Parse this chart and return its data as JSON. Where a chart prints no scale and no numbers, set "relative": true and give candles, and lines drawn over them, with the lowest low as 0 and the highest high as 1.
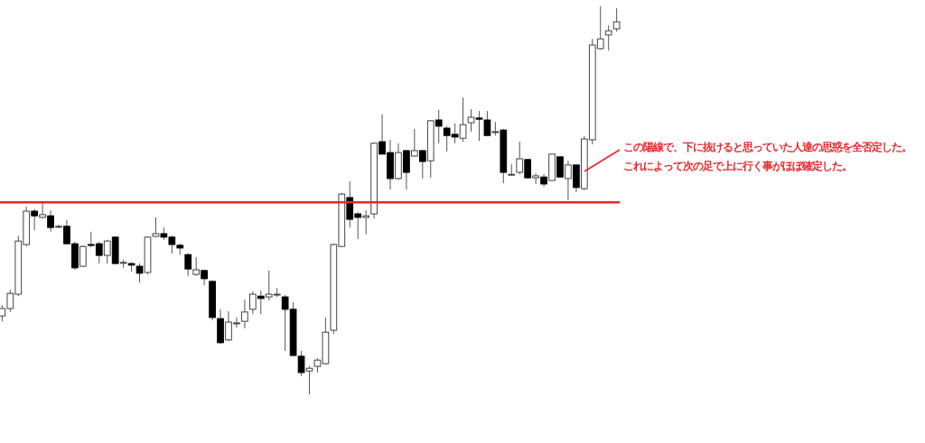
{
  "chart_data": {
    "type": "candlestick",
    "relative": true,
    "categories": [
      null,
      null,
      null,
      null,
      null,
      null,
      null,
      null,
      null,
      null,
      null,
      null,
      null,
      null,
      null,
      null,
      null,
      null,
      null,
      null,
      null,
      null,
      null,
      null,
      null,
      null,
      null,
      null,
      null,
      null,
      null,
      null,
      null,
      null,
      null,
      null,
      null,
      null,
      null,
      null,
      null,
      null,
      null,
      null,
      null,
      null,
      null,
      null,
      null,
      null,
      null,
      null,
      null,
      null,
      null,
      null,
      null,
      null,
      null,
      null,
      null,
      null,
      null,
      null,
      null,
      null,
      null,
      null,
      null,
      null,
      null,
      null,
      null,
      null,
      null,
      null,
      null
    ],
    "ohlc": [
      [
        0.202,
        0.23,
        0.188,
        0.221
      ],
      [
        0.221,
        0.27,
        0.212,
        0.26
      ],
      [
        0.258,
        0.409,
        0.253,
        0.395
      ],
      [
        0.386,
        0.484,
        0.381,
        0.472
      ],
      [
        0.472,
        0.477,
        0.423,
        0.46
      ],
      [
        0.456,
        0.493,
        0.453,
        0.463
      ],
      [
        0.46,
        0.474,
        0.419,
        0.43
      ],
      [
        0.433,
        0.437,
        0.428,
        0.433
      ],
      [
        0.433,
        0.449,
        0.388,
        0.388
      ],
      [
        0.388,
        0.393,
        0.321,
        0.326
      ],
      [
        0.33,
        0.384,
        0.328,
        0.381
      ],
      [
        0.386,
        0.419,
        0.379,
        0.384
      ],
      [
        0.388,
        0.393,
        0.337,
        0.358
      ],
      [
        0.358,
        0.398,
        0.337,
        0.395
      ],
      [
        0.405,
        0.407,
        0.335,
        0.337
      ],
      [
        0.34,
        0.347,
        0.326,
        0.34
      ],
      [
        0.337,
        0.34,
        0.316,
        0.333
      ],
      [
        0.33,
        0.337,
        0.288,
        0.312
      ],
      [
        0.314,
        0.407,
        0.309,
        0.405
      ],
      [
        0.407,
        0.456,
        0.405,
        0.414
      ],
      [
        0.414,
        0.43,
        0.398,
        0.405
      ],
      [
        0.405,
        0.409,
        0.363,
        0.386
      ],
      [
        0.384,
        0.388,
        0.36,
        0.377
      ],
      [
        0.36,
        0.363,
        0.305,
        0.323
      ],
      [
        0.309,
        0.353,
        0.305,
        0.321
      ],
      [
        0.319,
        0.321,
        0.281,
        0.298
      ],
      [
        0.291,
        0.293,
        0.191,
        0.198
      ],
      [
        0.195,
        0.219,
        0.13,
        0.133
      ],
      [
        0.14,
        0.214,
        0.137,
        0.186
      ],
      [
        0.184,
        0.198,
        0.172,
        0.184
      ],
      [
        0.188,
        0.244,
        0.17,
        0.212
      ],
      [
        0.219,
        0.265,
        0.207,
        0.258
      ],
      [
        0.253,
        0.267,
        0.207,
        0.247
      ],
      [
        0.251,
        0.319,
        0.242,
        0.258
      ],
      [
        0.258,
        0.274,
        0.251,
        0.258
      ],
      [
        0.251,
        0.256,
        0.112,
        0.219
      ],
      [
        0.219,
        0.237,
        0.098,
        0.1
      ],
      [
        0.098,
        0.112,
        0.047,
        0.056
      ],
      [
        0.06,
        0.072,
        0,
        0.067
      ],
      [
        0.072,
        0.093,
        0.056,
        0.088
      ],
      [
        0.079,
        0.198,
        0.077,
        0.16
      ],
      [
        0.165,
        0.388,
        0.156,
        0.386
      ],
      [
        0.381,
        0.519,
        0.379,
        0.516
      ],
      [
        0.507,
        0.549,
        0.43,
        0.451
      ],
      [
        0.465,
        0.47,
        0.4,
        0.456
      ],
      [
        0.456,
        0.474,
        0.412,
        0.46
      ],
      [
        0.465,
        0.649,
        0.453,
        0.647
      ],
      [
        0.651,
        0.721,
        0.619,
        0.619
      ],
      [
        0.623,
        0.656,
        0.528,
        0.556
      ],
      [
        0.556,
        0.647,
        0.553,
        0.623
      ],
      [
        0.628,
        0.63,
        0.528,
        0.572
      ],
      [
        0.614,
        0.684,
        0.612,
        0.628
      ],
      [
        0.628,
        0.63,
        0.556,
        0.6
      ],
      [
        0.602,
        0.707,
        0.558,
        0.705
      ],
      [
        0.707,
        0.733,
        0.647,
        0.691
      ],
      [
        0.686,
        0.691,
        0.626,
        0.667
      ],
      [
        0.67,
        0.698,
        0.647,
        0.663
      ],
      [
        0.66,
        0.765,
        0.651,
        0.695
      ],
      [
        0.7,
        0.735,
        0.677,
        0.714
      ],
      [
        0.712,
        0.73,
        0.653,
        0.709
      ],
      [
        0.707,
        0.73,
        0.667,
        0.667
      ],
      [
        0.677,
        0.702,
        0.667,
        0.677
      ],
      [
        0.681,
        0.684,
        0.544,
        0.572
      ],
      [
        0.567,
        0.593,
        0.563,
        0.567
      ],
      [
        0.572,
        0.651,
        0.567,
        0.607
      ],
      [
        0.605,
        0.607,
        0.556,
        0.558
      ],
      [
        0.558,
        0.57,
        0.542,
        0.563
      ],
      [
        0.56,
        0.567,
        0.535,
        0.542
      ],
      [
        0.551,
        0.619,
        0.551,
        0.619
      ],
      [
        0.612,
        0.612,
        0.56,
        0.56
      ],
      [
        0.556,
        0.602,
        0.5,
        0.591
      ],
      [
        0.591,
        0.591,
        0.521,
        0.533
      ],
      [
        0.53,
        0.665,
        0.526,
        0.658
      ],
      [
        0.656,
        0.916,
        0.644,
        0.9
      ],
      [
        0.891,
        1,
        0.888,
        0.916
      ],
      [
        0.926,
        0.951,
        0.886,
        0.937
      ],
      [
        0.942,
        0.995,
        0.935,
        0.96
      ]
    ],
    "ref_lines": [
      {
        "axis": "y",
        "value": 0.495,
        "color": "#e8262b"
      }
    ],
    "annotations": [
      "この陽線で、下に抜けると思っていた人達の思惑を全否定した。",
      "これによって次の足で上に行く事がほぼ確定した。"
    ]
  }
}
